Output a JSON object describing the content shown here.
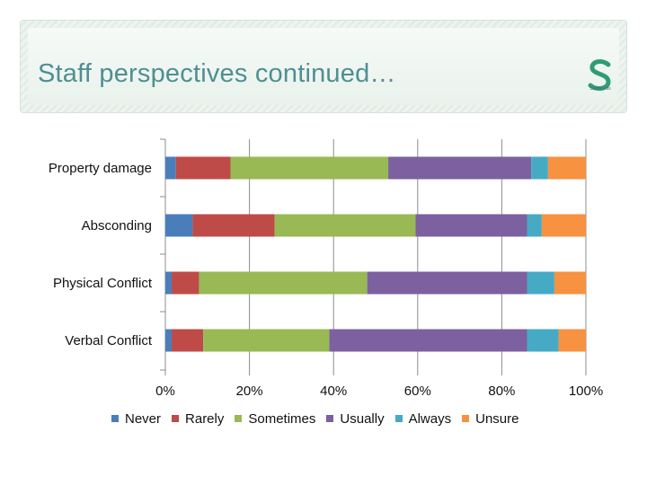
{
  "slide": {
    "title": "Staff perspectives continued…",
    "logo_name": "Safewards"
  },
  "colors": {
    "never": "#4a7ebb",
    "rarely": "#be4b48",
    "sometimes": "#98b954",
    "usually": "#7d60a0",
    "always": "#46aac5",
    "unsure": "#f69240",
    "title": "#4f8f92",
    "logo": "#2f9c77"
  },
  "chart_data": {
    "type": "bar",
    "orientation": "horizontal",
    "stacked": "percent",
    "categories": [
      "Property damage",
      "Absconding",
      "Physical Conflict",
      "Verbal Conflict"
    ],
    "series": [
      {
        "name": "Never",
        "key": "never",
        "values": [
          2.5,
          6.5,
          1.5,
          1.5
        ]
      },
      {
        "name": "Rarely",
        "key": "rarely",
        "values": [
          13,
          19.5,
          6.5,
          7.5
        ]
      },
      {
        "name": "Sometimes",
        "key": "sometimes",
        "values": [
          37.5,
          33.5,
          40,
          30
        ]
      },
      {
        "name": "Usually",
        "key": "usually",
        "values": [
          34,
          26.5,
          38,
          47
        ]
      },
      {
        "name": "Always",
        "key": "always",
        "values": [
          4,
          3.5,
          6.5,
          7.5
        ]
      },
      {
        "name": "Unsure",
        "key": "unsure",
        "values": [
          9,
          10.5,
          7.5,
          6.5
        ]
      }
    ],
    "xlim": [
      0,
      100
    ],
    "xticks": [
      "0%",
      "20%",
      "40%",
      "60%",
      "80%",
      "100%"
    ],
    "legend": "bottom",
    "title": ""
  }
}
